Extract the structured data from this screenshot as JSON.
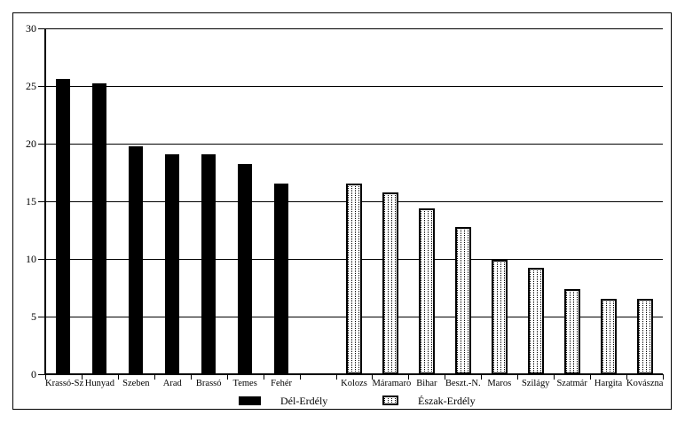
{
  "window": {
    "background": "#ffffff",
    "frame_border_color": "#000000"
  },
  "colors": {
    "bar_solid_fill": "#000000",
    "bar_pattern_line": "#000000",
    "axis": "#000000",
    "gridline": "#000000",
    "background": "#ffffff"
  },
  "chart_data": {
    "type": "bar",
    "title": "",
    "xlabel": "",
    "ylabel": "",
    "ylim": [
      0,
      30
    ],
    "yticks": [
      0,
      5,
      10,
      15,
      20,
      25,
      30
    ],
    "grid": true,
    "legend_position": "bottom",
    "categories": [
      "Krassó-Sz",
      "Hunyad",
      "Szeben",
      "Arad",
      "Brassó",
      "Temes",
      "Fehér",
      "",
      "Kolozs",
      "Máramaro",
      "Bihar",
      "Beszt.-N.",
      "Maros",
      "Szilágy",
      "Szatmár",
      "Hargita",
      "Kovászna"
    ],
    "series": [
      {
        "name": "Dél-Erdély",
        "swatch": "solid-black",
        "values": [
          25.6,
          25.2,
          19.8,
          19.1,
          19.1,
          18.2,
          16.5,
          null,
          null,
          null,
          null,
          null,
          null,
          null,
          null,
          null,
          null
        ]
      },
      {
        "name": "Észak-Erdély",
        "swatch": "dotted-pattern",
        "values": [
          null,
          null,
          null,
          null,
          null,
          null,
          null,
          null,
          16.5,
          15.8,
          14.4,
          12.8,
          9.9,
          9.2,
          7.4,
          6.5,
          6.5
        ]
      }
    ]
  },
  "legend": {
    "items": [
      {
        "label": "Dél-Erdély",
        "swatch": "solid-black"
      },
      {
        "label": "Észak-Erdély",
        "swatch": "dotted-pattern"
      }
    ]
  }
}
